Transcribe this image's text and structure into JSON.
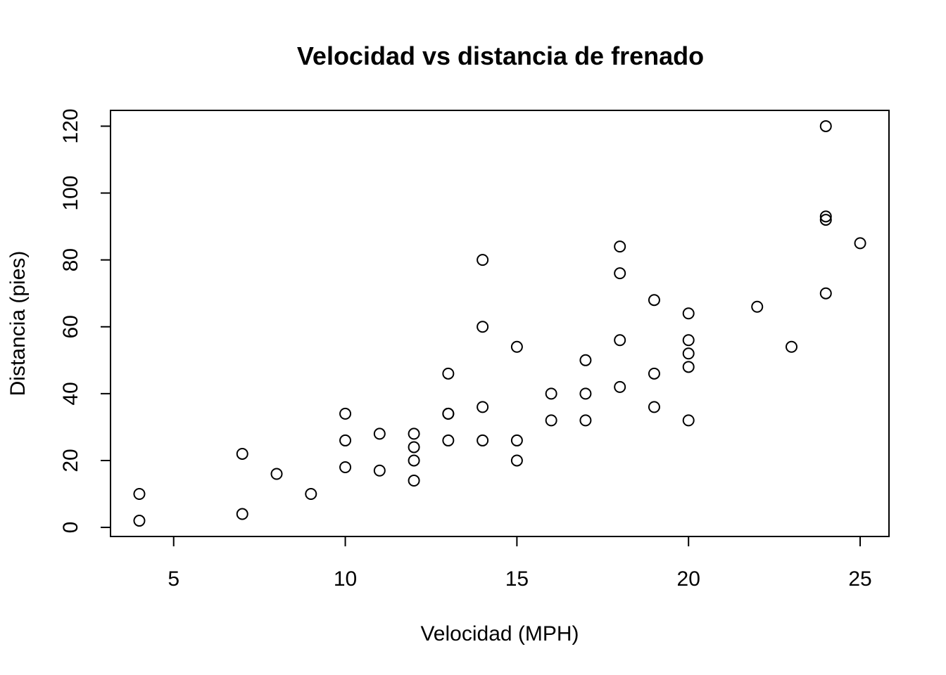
{
  "chart_data": {
    "type": "scatter",
    "title": "Velocidad vs distancia de frenado",
    "xlabel": "Velocidad (MPH)",
    "ylabel": "Distancia (pies)",
    "xlim": [
      3.16,
      25.84
    ],
    "ylim": [
      -2.72,
      124.72
    ],
    "xticks": [
      5,
      10,
      15,
      20,
      25
    ],
    "yticks": [
      0,
      20,
      40,
      60,
      80,
      100,
      120
    ],
    "grid": false,
    "legend": "none",
    "marker": "open-circle",
    "color": "#000000",
    "points": [
      {
        "x": 4,
        "y": 2
      },
      {
        "x": 4,
        "y": 10
      },
      {
        "x": 7,
        "y": 4
      },
      {
        "x": 7,
        "y": 22
      },
      {
        "x": 8,
        "y": 16
      },
      {
        "x": 9,
        "y": 10
      },
      {
        "x": 10,
        "y": 18
      },
      {
        "x": 10,
        "y": 26
      },
      {
        "x": 10,
        "y": 34
      },
      {
        "x": 11,
        "y": 17
      },
      {
        "x": 11,
        "y": 28
      },
      {
        "x": 12,
        "y": 14
      },
      {
        "x": 12,
        "y": 20
      },
      {
        "x": 12,
        "y": 24
      },
      {
        "x": 12,
        "y": 28
      },
      {
        "x": 13,
        "y": 26
      },
      {
        "x": 13,
        "y": 34
      },
      {
        "x": 13,
        "y": 34
      },
      {
        "x": 13,
        "y": 46
      },
      {
        "x": 14,
        "y": 26
      },
      {
        "x": 14,
        "y": 36
      },
      {
        "x": 14,
        "y": 60
      },
      {
        "x": 14,
        "y": 80
      },
      {
        "x": 15,
        "y": 20
      },
      {
        "x": 15,
        "y": 26
      },
      {
        "x": 15,
        "y": 54
      },
      {
        "x": 16,
        "y": 32
      },
      {
        "x": 16,
        "y": 40
      },
      {
        "x": 17,
        "y": 32
      },
      {
        "x": 17,
        "y": 40
      },
      {
        "x": 17,
        "y": 50
      },
      {
        "x": 18,
        "y": 42
      },
      {
        "x": 18,
        "y": 56
      },
      {
        "x": 18,
        "y": 76
      },
      {
        "x": 18,
        "y": 84
      },
      {
        "x": 19,
        "y": 36
      },
      {
        "x": 19,
        "y": 46
      },
      {
        "x": 19,
        "y": 68
      },
      {
        "x": 20,
        "y": 32
      },
      {
        "x": 20,
        "y": 48
      },
      {
        "x": 20,
        "y": 52
      },
      {
        "x": 20,
        "y": 56
      },
      {
        "x": 20,
        "y": 64
      },
      {
        "x": 22,
        "y": 66
      },
      {
        "x": 23,
        "y": 54
      },
      {
        "x": 24,
        "y": 70
      },
      {
        "x": 24,
        "y": 92
      },
      {
        "x": 24,
        "y": 93
      },
      {
        "x": 24,
        "y": 120
      },
      {
        "x": 25,
        "y": 85
      }
    ]
  }
}
